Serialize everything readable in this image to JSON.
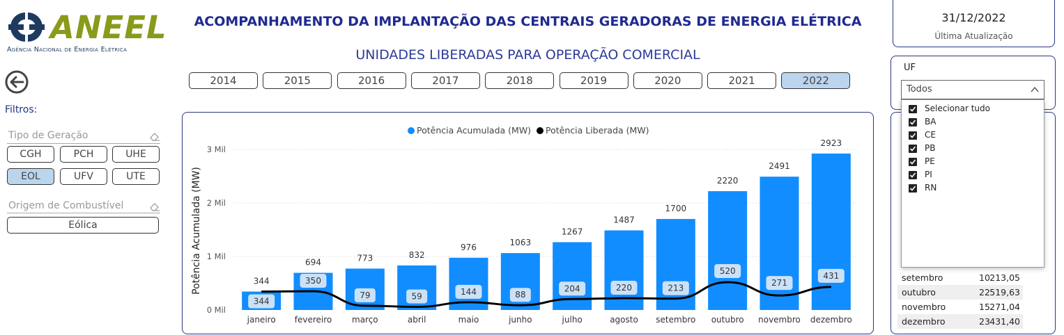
{
  "logo": {
    "wordmark": "ANEEL",
    "tagline": "Agência Nacional de Energia Elétrica"
  },
  "main_title": "ACOMPANHAMENTO DA IMPLANTAÇÃO DAS CENTRAIS GERADORAS DE ENERGIA ELÉTRICA",
  "sub_title": "UNIDADES LIBERADAS PARA OPERAÇÃO COMERCIAL",
  "filters_label": "Filtros:",
  "tipo_geracao": {
    "title": "Tipo de Geração",
    "options": [
      {
        "label": "CGH",
        "selected": false
      },
      {
        "label": "PCH",
        "selected": false
      },
      {
        "label": "UHE",
        "selected": false
      },
      {
        "label": "EOL",
        "selected": true
      },
      {
        "label": "UFV",
        "selected": false
      },
      {
        "label": "UTE",
        "selected": false
      }
    ]
  },
  "origem_combustivel": {
    "title": "Origem de Combustível",
    "value": "Eólica"
  },
  "years": [
    {
      "label": "2014",
      "selected": false
    },
    {
      "label": "2015",
      "selected": false
    },
    {
      "label": "2016",
      "selected": false
    },
    {
      "label": "2017",
      "selected": false
    },
    {
      "label": "2018",
      "selected": false
    },
    {
      "label": "2019",
      "selected": false
    },
    {
      "label": "2020",
      "selected": false
    },
    {
      "label": "2021",
      "selected": false
    },
    {
      "label": "2022",
      "selected": true
    }
  ],
  "update": {
    "date": "31/12/2022",
    "label": "Última Atualização"
  },
  "uf": {
    "title": "UF",
    "selected": "Todos",
    "options": [
      "Selecionar tudo",
      "BA",
      "CE",
      "PB",
      "PE",
      "PI",
      "RN"
    ]
  },
  "table_rows": [
    {
      "month": "setembro",
      "count": "10",
      "value": "213,05",
      "shade": false
    },
    {
      "month": "outubro",
      "count": "22",
      "value": "519,63",
      "shade": true
    },
    {
      "month": "novembro",
      "count": "15",
      "value": "271,04",
      "shade": false
    },
    {
      "month": "dezembro",
      "count": "23",
      "value": "431,40",
      "shade": true
    }
  ],
  "colors": {
    "bar": "#118dff",
    "line": "#000000",
    "accent": "#1f2a90",
    "selected_chip": "#bcd5ee"
  },
  "chart_data": {
    "type": "bar",
    "categories": [
      "janeiro",
      "fevereiro",
      "março",
      "abril",
      "maio",
      "junho",
      "julho",
      "agosto",
      "setembro",
      "outubro",
      "novembro",
      "dezembro"
    ],
    "series": [
      {
        "name": "Potência Acumulada (MW)",
        "type": "bar",
        "values": [
          344,
          694,
          773,
          832,
          976,
          1063,
          1267,
          1487,
          1700,
          2220,
          2491,
          2923
        ]
      },
      {
        "name": "Potência Liberada (MW)",
        "type": "line",
        "values": [
          344,
          350,
          79,
          59,
          144,
          88,
          204,
          220,
          213,
          520,
          271,
          431
        ]
      }
    ],
    "ylabel": "Potência Acumulada (MW)",
    "ylim": [
      0,
      3000
    ],
    "yticks": [
      0,
      1000,
      2000,
      3000
    ],
    "ytick_labels": [
      "0 Mil",
      "1 Mil",
      "2 Mil",
      "3 Mil"
    ],
    "legend": "top-center",
    "grid": true
  }
}
